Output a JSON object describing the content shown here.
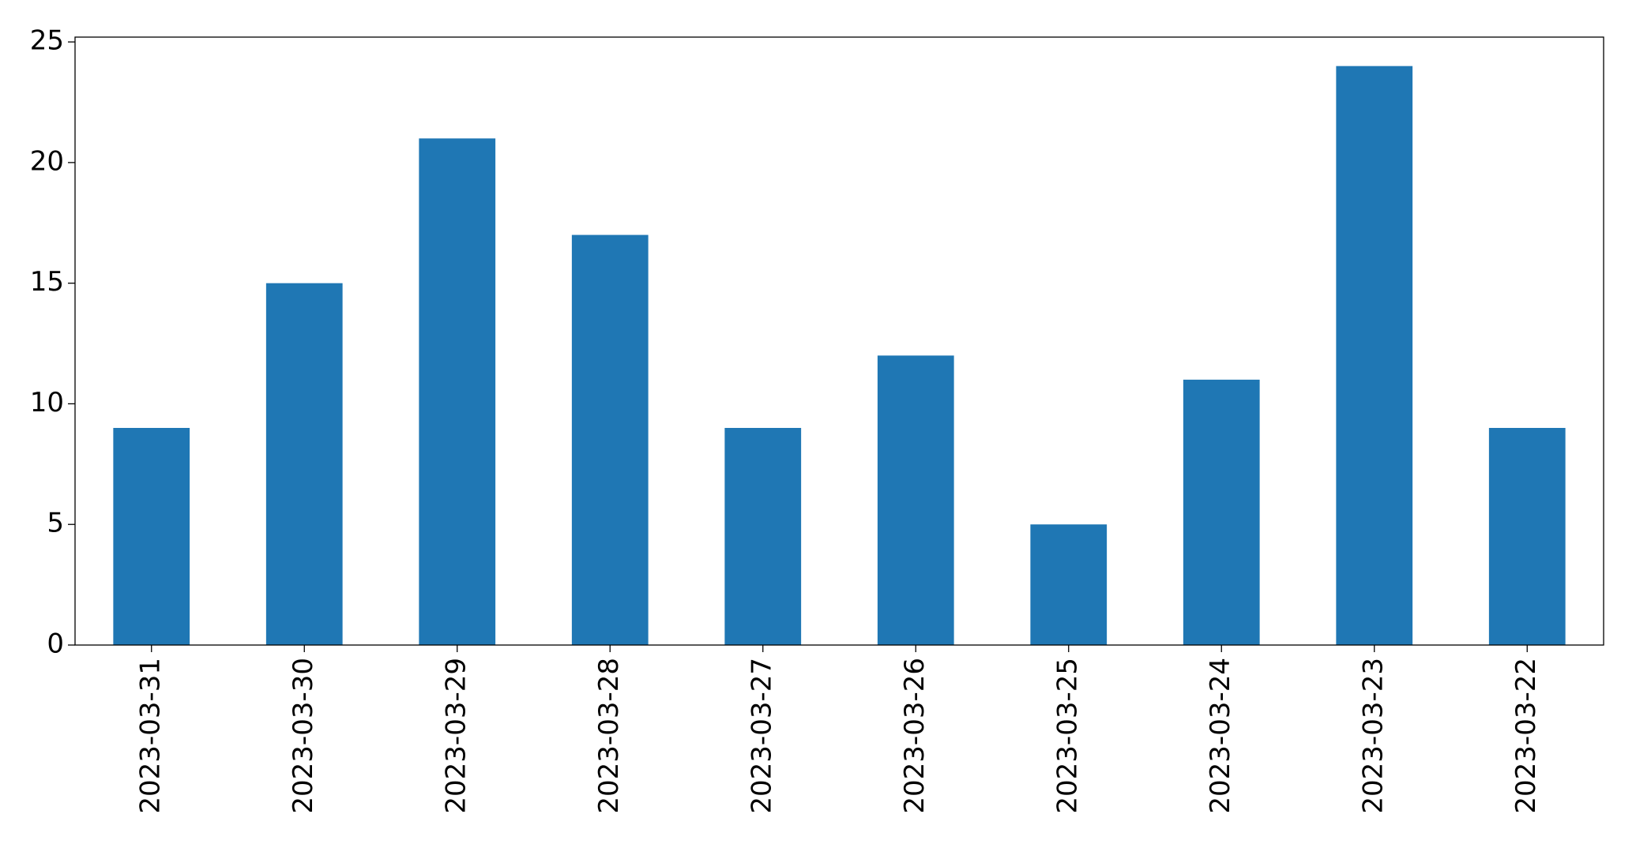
{
  "chart_data": {
    "type": "bar",
    "categories": [
      "2023-03-31",
      "2023-03-30",
      "2023-03-29",
      "2023-03-28",
      "2023-03-27",
      "2023-03-26",
      "2023-03-25",
      "2023-03-24",
      "2023-03-23",
      "2023-03-22"
    ],
    "values": [
      9,
      15,
      21,
      17,
      9,
      12,
      5,
      11,
      24,
      9
    ],
    "color": "#1f77b4",
    "ylim": [
      0,
      25.2
    ],
    "yticks": [
      0,
      5,
      10,
      15,
      20,
      25
    ],
    "grid": false
  }
}
